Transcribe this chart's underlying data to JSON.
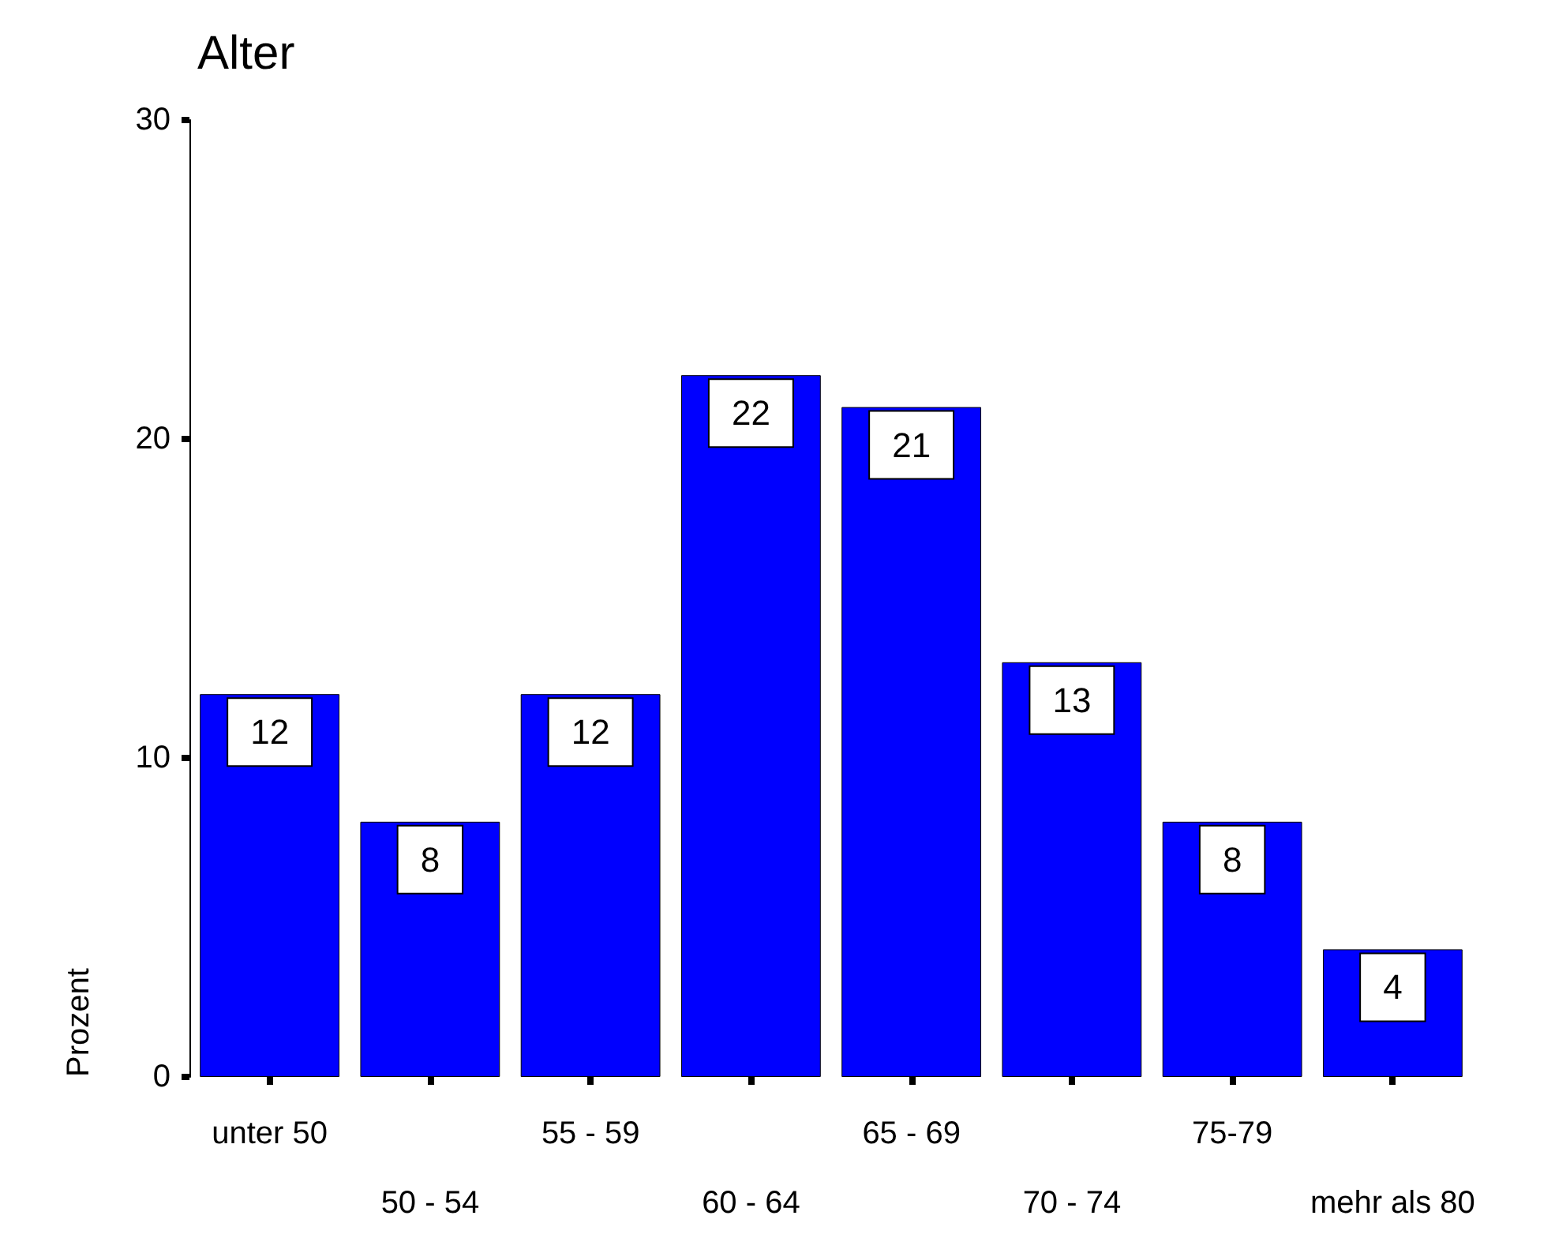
{
  "chart_data": {
    "type": "bar",
    "title": "Alter",
    "ylabel": "Prozent",
    "categories": [
      "unter 50",
      "50 - 54",
      "55 - 59",
      "60 - 64",
      "65 - 69",
      "70 - 74",
      "75-79",
      "mehr als 80"
    ],
    "values": [
      12,
      8,
      12,
      22,
      21,
      13,
      8,
      4
    ],
    "color": "#0000ff",
    "ylim": [
      0,
      30
    ],
    "yticks": [
      0,
      10,
      20,
      30
    ],
    "grid": false,
    "data_labels": true
  }
}
